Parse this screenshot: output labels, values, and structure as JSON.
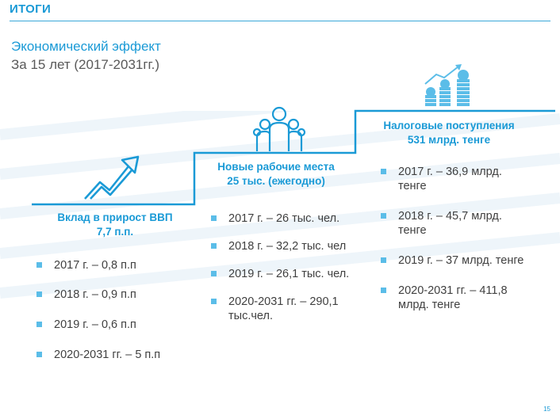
{
  "header": {
    "title": "ИТОГИ",
    "subtitle_line1": "Экономический эффект",
    "subtitle_line2": "За 15 лет (2017-2031гг.)"
  },
  "columns": {
    "gdp": {
      "heading_line1": "Вклад в прирост ВВП",
      "heading_line2": "7,7 п.п.",
      "items": [
        "2017 г. – 0,8 п.п",
        "2018 г. – 0,9 п.п",
        "2019 г. – 0,6 п.п",
        "2020-2031 гг. – 5 п.п"
      ]
    },
    "jobs": {
      "heading_line1": "Новые рабочие места",
      "heading_line2": "25 тыс. (ежегодно)",
      "items": [
        "2017 г. – 26 тыс. чел.",
        "2018 г. – 32,2 тыс. чел",
        "2019 г. – 26,1 тыс. чел.",
        "2020-2031 гг. – 290,1 тыс.чел."
      ]
    },
    "tax": {
      "heading_line1": "Налоговые поступления",
      "heading_line2": "531 млрд. тенге",
      "items": [
        "2017 г. – 36,9 млрд. тенге",
        "2018 г. – 45,7 млрд. тенге",
        "2019 г. – 37 млрд. тенге",
        "2020-2031 гг. – 411,8 млрд. тенге"
      ]
    }
  },
  "page_number": "15",
  "colors": {
    "accent": "#1a9ad6",
    "bullet": "#5bbde8",
    "text": "#404040"
  }
}
